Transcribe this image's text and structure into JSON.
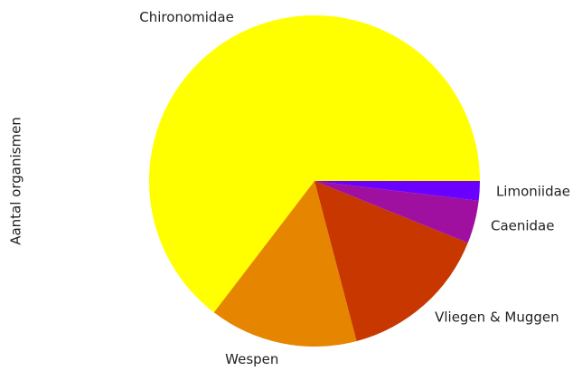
{
  "chart_data": {
    "type": "pie",
    "ylabel": "Aantal organismen",
    "categories": [
      "Chironomidae",
      "Wespen",
      "Vliegen & Muggen",
      "Caenidae",
      "Limoniidae"
    ],
    "values": [
      64.6,
      14.5,
      14.8,
      4.2,
      1.9
    ],
    "colors": [
      "#ffff00",
      "#e58500",
      "#c83700",
      "#a010a0",
      "#6a00ff"
    ]
  }
}
